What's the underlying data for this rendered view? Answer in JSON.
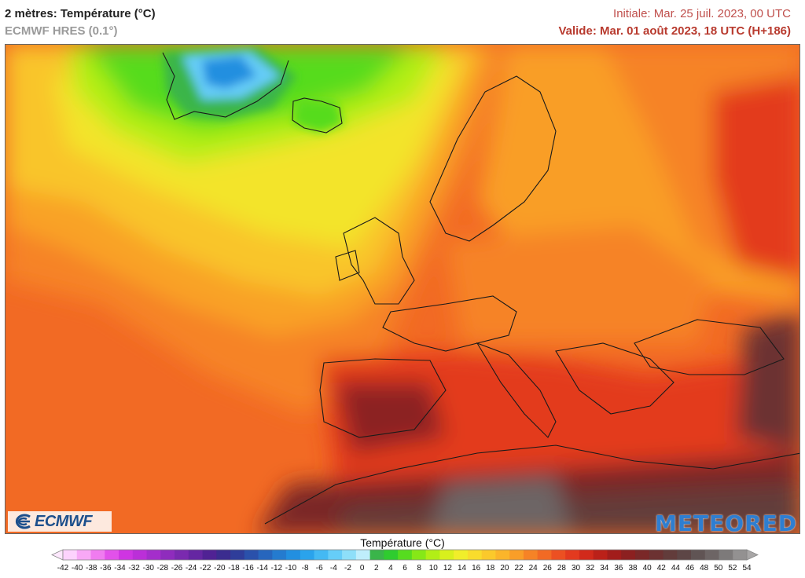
{
  "header": {
    "title": "2 mètres: Température (°C)",
    "model": "ECMWF HRES (0.1°)",
    "initial": "Initiale: Mar. 25 juil. 2023, 00 UTC",
    "valid": "Valide: Mar. 01 août 2023, 18 UTC (H+186)"
  },
  "logos": {
    "ecmwf": "ECMWF",
    "meteored": "METEORED"
  },
  "legend": {
    "title": "Température (°C)",
    "ticks": [
      "-42",
      "-40",
      "-38",
      "-36",
      "-34",
      "-32",
      "-30",
      "-28",
      "-26",
      "-24",
      "-22",
      "-20",
      "-18",
      "-16",
      "-14",
      "-12",
      "-10",
      "-8",
      "-6",
      "-4",
      "-2",
      "0",
      "2",
      "4",
      "6",
      "8",
      "10",
      "12",
      "14",
      "16",
      "18",
      "20",
      "22",
      "24",
      "26",
      "28",
      "30",
      "32",
      "34",
      "36",
      "38",
      "40",
      "42",
      "44",
      "46",
      "48",
      "50",
      "52",
      "54"
    ],
    "colors": [
      "#fdd3fd",
      "#f8a8f6",
      "#f07cf0",
      "#e251ea",
      "#cf35e2",
      "#bb2fd8",
      "#a42ecb",
      "#8f2cbd",
      "#7a2aaf",
      "#6526a2",
      "#502294",
      "#3b2c8f",
      "#2f3d9a",
      "#2a51ab",
      "#2766bd",
      "#247bcf",
      "#228fe0",
      "#2aa3ec",
      "#44b9f3",
      "#66cdf8",
      "#8edff9",
      "#bfeefc",
      "#3ab54a",
      "#2fcc2f",
      "#56dc1f",
      "#86e817",
      "#b2ee16",
      "#d8f01d",
      "#f1ee2a",
      "#f9dc2c",
      "#fbc92b",
      "#fbb52a",
      "#f99e28",
      "#f68326",
      "#f26a24",
      "#ec5022",
      "#e33a1f",
      "#d22a1b",
      "#bb2119",
      "#a21d1b",
      "#8c2020",
      "#7a2828",
      "#6c3232",
      "#623c3b",
      "#5d4646",
      "#605454",
      "#6d6565",
      "#7d7a7a",
      "#939191"
    ]
  },
  "map": {
    "region": "Europe / North Atlantic",
    "colors": {
      "ocean_warm": "#f26a24",
      "atlantic_mild": "#fbb52a",
      "greenland": "#56dc1f",
      "ice": "#44b9f3",
      "sahara": "#6d6565"
    }
  }
}
